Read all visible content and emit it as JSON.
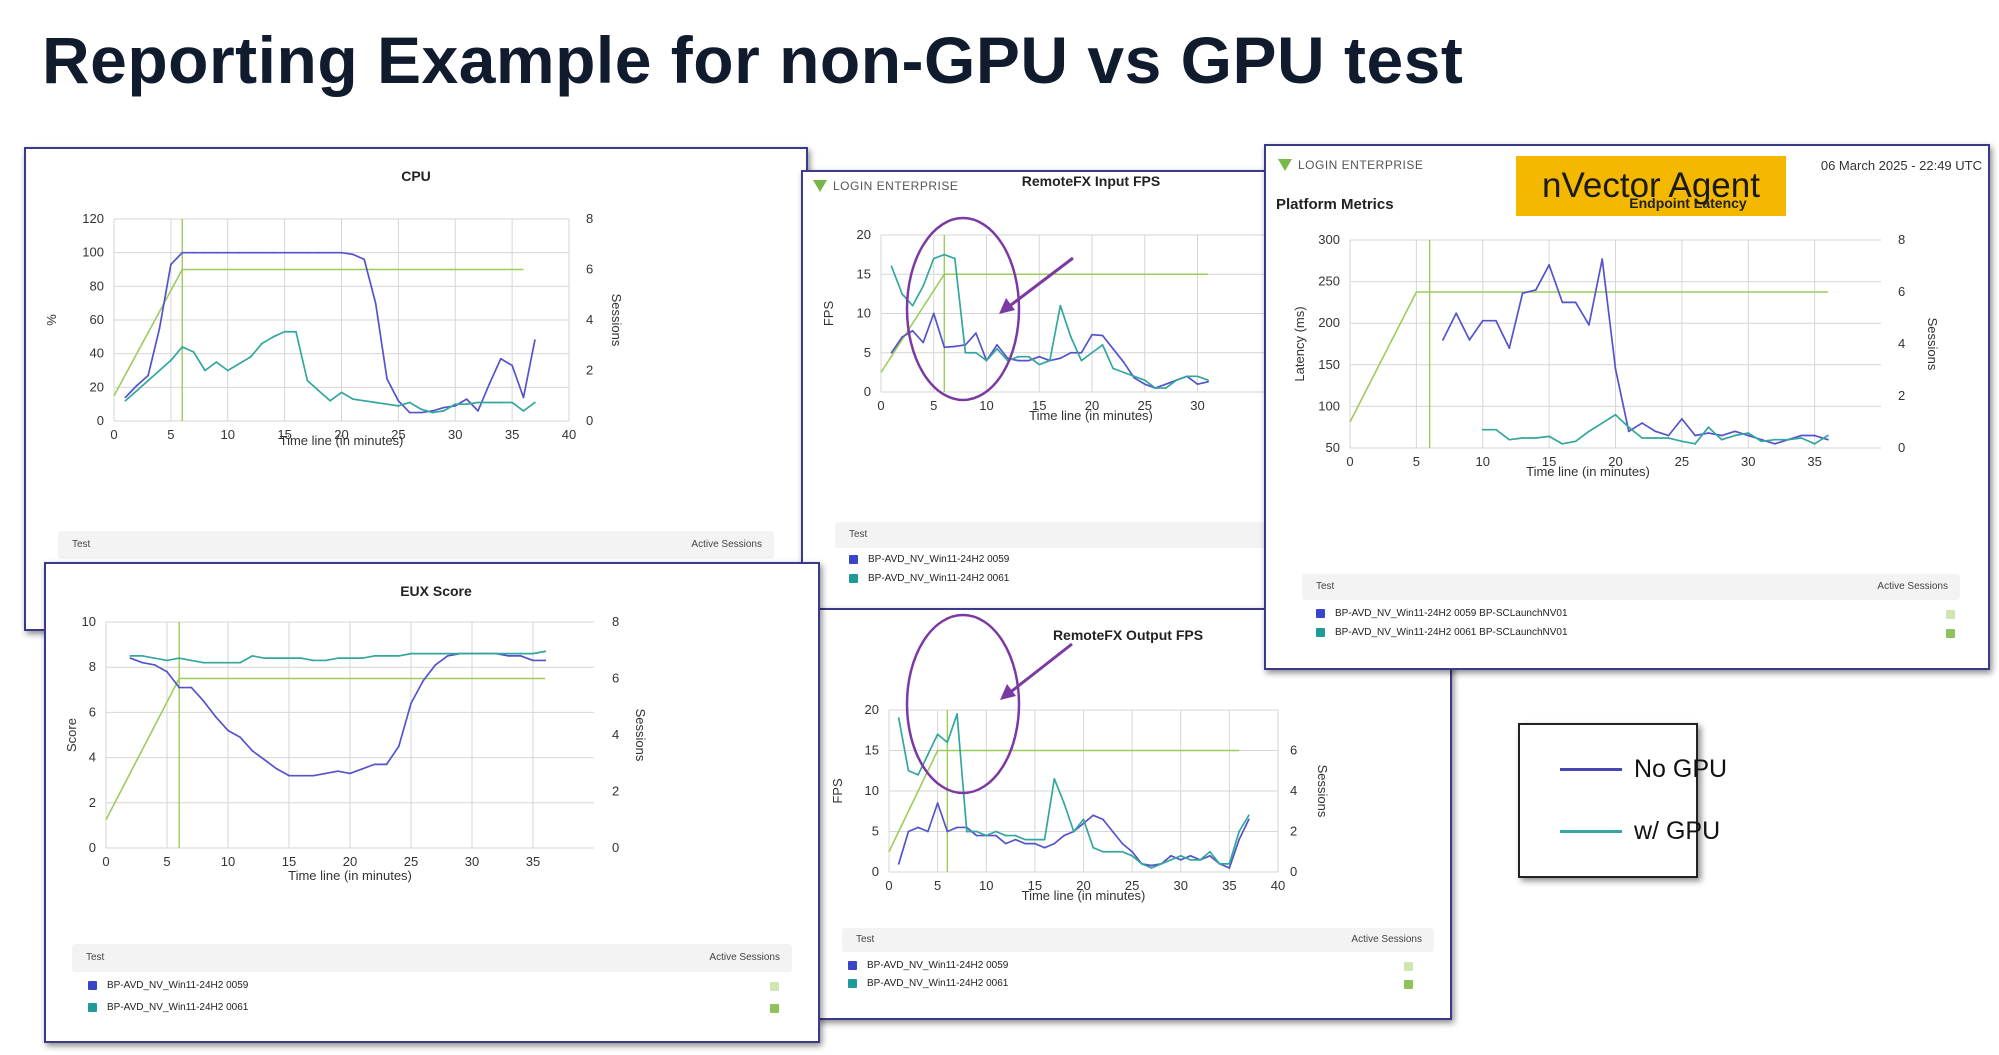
{
  "slide": {
    "title": "Reporting Example for non-GPU vs GPU test"
  },
  "colors": {
    "no_gpu": "#5553cc",
    "w_gpu": "#33a79e",
    "sessions": "#9ccc5b",
    "panel_border": "#3b3a8a",
    "callout": "#7b3aa3",
    "nvector_bg": "#f5b800"
  },
  "key": {
    "no_gpu": "No GPU",
    "w_gpu": "w/ GPU"
  },
  "brand": {
    "logo_text": "LOGIN ENTERPRISE",
    "logo_icon": "login-enterprise-triangle-icon",
    "nvector_label": "nVector Agent",
    "date": "06 March 2025 - 22:49 UTC",
    "section": "Platform Metrics"
  },
  "legend": {
    "test_header": "Test",
    "active_sessions_header": "Active Sessions"
  },
  "chart_data": [
    {
      "id": "cpu",
      "type": "line",
      "title": "CPU",
      "xlabel": "Time line (in minutes)",
      "ylabel": "%",
      "y2label": "Sessions",
      "xlim": [
        0,
        40
      ],
      "xticks": [
        0,
        5,
        10,
        15,
        20,
        25,
        30,
        35,
        40
      ],
      "ylim": [
        0,
        120
      ],
      "yticks": [
        0,
        20,
        40,
        60,
        80,
        100,
        120
      ],
      "y2lim": [
        0,
        8
      ],
      "y2ticks": [
        0,
        2,
        4,
        6,
        8
      ],
      "legend_labels": [
        "Test",
        "Active Sessions"
      ],
      "series": [
        {
          "name": "No GPU",
          "color": "#5553cc",
          "x": [
            1,
            2,
            3,
            4,
            5,
            6,
            7,
            8,
            9,
            10,
            11,
            12,
            13,
            14,
            15,
            16,
            17,
            18,
            19,
            20,
            21,
            22,
            23,
            24,
            25,
            26,
            27,
            28,
            29,
            30,
            31,
            32,
            33,
            34,
            35,
            36,
            37
          ],
          "values": [
            14,
            21,
            27,
            55,
            93,
            100,
            100,
            100,
            100,
            100,
            100,
            100,
            100,
            100,
            100,
            100,
            100,
            100,
            100,
            100,
            99,
            96,
            70,
            25,
            12,
            5,
            5,
            6,
            8,
            9,
            13,
            6,
            22,
            37,
            33,
            14,
            48
          ]
        },
        {
          "name": "w/ GPU",
          "color": "#33a79e",
          "x": [
            1,
            2,
            3,
            4,
            5,
            6,
            7,
            8,
            9,
            10,
            11,
            12,
            13,
            14,
            15,
            16,
            17,
            18,
            19,
            20,
            21,
            22,
            23,
            24,
            25,
            26,
            27,
            28,
            29,
            30,
            31,
            32,
            33,
            34,
            35,
            36,
            37
          ],
          "values": [
            12,
            18,
            24,
            30,
            36,
            44,
            41,
            30,
            35,
            30,
            34,
            38,
            46,
            50,
            53,
            53,
            24,
            18,
            12,
            17,
            13,
            12,
            11,
            10,
            9,
            11,
            7,
            5,
            6,
            10,
            10,
            11,
            11,
            11,
            11,
            6,
            11
          ]
        }
      ],
      "sessions": {
        "color": "#9ccc5b",
        "x": [
          0,
          6,
          6,
          36
        ],
        "values": [
          1,
          6,
          6,
          6
        ],
        "marker_x": 6
      }
    },
    {
      "id": "eux",
      "type": "line",
      "title": "EUX Score",
      "xlabel": "Time line (in minutes)",
      "ylabel": "Score",
      "y2label": "Sessions",
      "xlim": [
        0,
        40
      ],
      "xticks": [
        0,
        5,
        10,
        15,
        20,
        25,
        30,
        35
      ],
      "ylim": [
        0,
        10
      ],
      "yticks": [
        0,
        2,
        4,
        6,
        8,
        10
      ],
      "y2lim": [
        0,
        8
      ],
      "y2ticks": [
        0,
        2,
        4,
        6,
        8
      ],
      "legend_labels": [
        "BP-AVD_NV_Win11-24H2 0059",
        "BP-AVD_NV_Win11-24H2 0061"
      ],
      "series": [
        {
          "name": "BP-AVD_NV_Win11-24H2 0059",
          "color": "#5553cc",
          "x": [
            2,
            3,
            4,
            5,
            6,
            7,
            8,
            9,
            10,
            11,
            12,
            13,
            14,
            15,
            16,
            17,
            18,
            19,
            20,
            21,
            22,
            23,
            24,
            25,
            26,
            27,
            28,
            29,
            30,
            31,
            32,
            33,
            34,
            35,
            36
          ],
          "values": [
            8.4,
            8.2,
            8.1,
            7.8,
            7.1,
            7.1,
            6.5,
            5.8,
            5.2,
            4.9,
            4.3,
            3.9,
            3.5,
            3.2,
            3.2,
            3.2,
            3.3,
            3.4,
            3.3,
            3.5,
            3.7,
            3.7,
            4.5,
            6.4,
            7.4,
            8.1,
            8.5,
            8.6,
            8.6,
            8.6,
            8.6,
            8.5,
            8.5,
            8.3,
            8.3
          ]
        },
        {
          "name": "BP-AVD_NV_Win11-24H2 0061",
          "color": "#33a79e",
          "x": [
            2,
            3,
            4,
            5,
            6,
            7,
            8,
            9,
            10,
            11,
            12,
            13,
            14,
            15,
            16,
            17,
            18,
            19,
            20,
            21,
            22,
            23,
            24,
            25,
            26,
            27,
            28,
            29,
            30,
            31,
            32,
            33,
            34,
            35,
            36
          ],
          "values": [
            8.5,
            8.5,
            8.4,
            8.3,
            8.4,
            8.3,
            8.2,
            8.2,
            8.2,
            8.2,
            8.5,
            8.4,
            8.4,
            8.4,
            8.4,
            8.3,
            8.3,
            8.4,
            8.4,
            8.4,
            8.5,
            8.5,
            8.5,
            8.6,
            8.6,
            8.6,
            8.6,
            8.6,
            8.6,
            8.6,
            8.6,
            8.6,
            8.6,
            8.6,
            8.7
          ]
        }
      ],
      "sessions": {
        "color": "#9ccc5b",
        "x": [
          0,
          6,
          6,
          36
        ],
        "values": [
          1,
          6,
          6,
          6
        ],
        "marker_x": 6
      }
    },
    {
      "id": "input_fps",
      "type": "line",
      "title": "RemoteFX Input FPS",
      "xlabel": "Time line (in minutes)",
      "ylabel": "FPS",
      "xlim": [
        0,
        40
      ],
      "xticks": [
        0,
        5,
        10,
        15,
        20,
        25,
        30
      ],
      "ylim": [
        0,
        20
      ],
      "yticks": [
        0,
        5,
        10,
        15,
        20
      ],
      "y2lim": [
        0,
        8
      ],
      "legend_labels": [
        "BP-AVD_NV_Win11-24H2 0059",
        "BP-AVD_NV_Win11-24H2 0061"
      ],
      "series": [
        {
          "name": "BP-AVD_NV_Win11-24H2 0059",
          "color": "#5553cc",
          "x": [
            1,
            2,
            3,
            4,
            5,
            6,
            7,
            8,
            9,
            10,
            11,
            12,
            13,
            14,
            15,
            16,
            17,
            18,
            19,
            20,
            21,
            22,
            23,
            24,
            25,
            26,
            27,
            28,
            29,
            30,
            31
          ],
          "values": [
            5,
            7,
            7.8,
            6.3,
            10,
            5.7,
            5.8,
            6,
            7.5,
            4,
            6,
            4.3,
            4,
            4,
            4.5,
            4,
            4.3,
            5,
            5,
            7.3,
            7.2,
            5.5,
            3.8,
            1.8,
            1,
            0.5,
            1,
            1.5,
            2,
            1,
            1.3
          ]
        },
        {
          "name": "BP-AVD_NV_Win11-24H2 0061",
          "color": "#33a79e",
          "x": [
            1,
            2,
            3,
            4,
            5,
            6,
            7,
            8,
            9,
            10,
            11,
            12,
            13,
            14,
            15,
            16,
            17,
            18,
            19,
            20,
            21,
            22,
            23,
            24,
            25,
            26,
            27,
            28,
            29,
            30,
            31
          ],
          "values": [
            16,
            12.5,
            11,
            13.5,
            17,
            17.5,
            17,
            5,
            5,
            4,
            5.5,
            4,
            4.5,
            4.5,
            3.5,
            4,
            11,
            7,
            4,
            5,
            6,
            3,
            2.5,
            2,
            1.5,
            0.5,
            0.5,
            1.5,
            2,
            2,
            1.5
          ]
        }
      ],
      "sessions": {
        "color": "#9ccc5b",
        "x": [
          0,
          6,
          6,
          31
        ],
        "values": [
          1,
          6,
          6,
          6
        ],
        "marker_x": 6
      }
    },
    {
      "id": "output_fps",
      "type": "line",
      "title": "RemoteFX Output FPS",
      "xlabel": "Time line (in minutes)",
      "ylabel": "FPS",
      "y2label": "Sessions",
      "xlim": [
        0,
        40
      ],
      "xticks": [
        0,
        5,
        10,
        15,
        20,
        25,
        30,
        35,
        40
      ],
      "ylim": [
        0,
        20
      ],
      "yticks": [
        0,
        5,
        10,
        15,
        20
      ],
      "y2lim": [
        0,
        8
      ],
      "y2ticks": [
        0,
        2,
        4,
        6
      ],
      "legend_labels": [
        "BP-AVD_NV_Win11-24H2 0059",
        "BP-AVD_NV_Win11-24H2 0061"
      ],
      "series": [
        {
          "name": "BP-AVD_NV_Win11-24H2 0059",
          "color": "#5553cc",
          "x": [
            1,
            2,
            3,
            4,
            5,
            6,
            7,
            8,
            9,
            10,
            11,
            12,
            13,
            14,
            15,
            16,
            17,
            18,
            19,
            20,
            21,
            22,
            23,
            24,
            25,
            26,
            27,
            28,
            29,
            30,
            31,
            32,
            33,
            34,
            35,
            36,
            37
          ],
          "values": [
            1,
            5,
            5.5,
            5,
            8.5,
            5,
            5.5,
            5.5,
            4.5,
            4.5,
            4.5,
            3.5,
            4,
            3.5,
            3.5,
            3,
            3.5,
            4.5,
            5,
            6,
            7,
            6.5,
            5,
            3.5,
            2.5,
            1,
            0.8,
            1,
            2,
            1.5,
            2,
            1.5,
            2,
            1,
            0.5,
            4,
            6.5
          ]
        },
        {
          "name": "BP-AVD_NV_Win11-24H2 0061",
          "color": "#33a79e",
          "x": [
            1,
            2,
            3,
            4,
            5,
            6,
            7,
            8,
            9,
            10,
            11,
            12,
            13,
            14,
            15,
            16,
            17,
            18,
            19,
            20,
            21,
            22,
            23,
            24,
            25,
            26,
            27,
            28,
            29,
            30,
            31,
            32,
            33,
            34,
            35,
            36,
            37
          ],
          "values": [
            19,
            12.5,
            12,
            14.5,
            17,
            16,
            19.5,
            5,
            5,
            4.5,
            5,
            4.5,
            4.5,
            4,
            4,
            4,
            11.5,
            8.5,
            5,
            6.5,
            3,
            2.5,
            2.5,
            2.5,
            2,
            1,
            0.5,
            1,
            1.5,
            2,
            1.5,
            1.5,
            2.5,
            1,
            1,
            5,
            7
          ]
        }
      ],
      "sessions": {
        "color": "#9ccc5b",
        "x": [
          0,
          5,
          5,
          36
        ],
        "values": [
          1,
          6,
          6,
          6
        ],
        "marker_x": 6
      }
    },
    {
      "id": "latency",
      "type": "line",
      "title": "Endpoint Latency",
      "xlabel": "Time line (in minutes)",
      "ylabel": "Latency (ms)",
      "y2label": "Sessions",
      "xlim": [
        0,
        40
      ],
      "xticks": [
        0,
        5,
        10,
        15,
        20,
        25,
        30,
        35
      ],
      "ylim": [
        50,
        300
      ],
      "yticks": [
        50,
        100,
        150,
        200,
        250,
        300
      ],
      "y2lim": [
        0,
        8
      ],
      "y2ticks": [
        0,
        2,
        4,
        6,
        8
      ],
      "legend_labels": [
        "BP-AVD_NV_Win11-24H2 0059 BP-SCLaunchNV01",
        "BP-AVD_NV_Win11-24H2 0061 BP-SCLaunchNV01"
      ],
      "series": [
        {
          "name": "BP-AVD_NV_Win11-24H2 0059 BP-SCLaunchNV01",
          "color": "#5553cc",
          "x": [
            7,
            8,
            9,
            10,
            11,
            12,
            13,
            14,
            15,
            16,
            17,
            18,
            19,
            20,
            21,
            22,
            23,
            24,
            25,
            26,
            27,
            28,
            29,
            30,
            31,
            32,
            33,
            34,
            35,
            36
          ],
          "values": [
            180,
            212,
            180,
            203,
            203,
            170,
            236,
            240,
            270,
            225,
            225,
            198,
            277,
            145,
            70,
            80,
            70,
            65,
            85,
            65,
            68,
            65,
            70,
            65,
            60,
            55,
            60,
            65,
            65,
            60
          ]
        },
        {
          "name": "BP-AVD_NV_Win11-24H2 0061 BP-SCLaunchNV01",
          "color": "#33a79e",
          "x": [
            10,
            11,
            12,
            13,
            14,
            15,
            16,
            17,
            18,
            19,
            20,
            21,
            22,
            23,
            24,
            25,
            26,
            27,
            28,
            29,
            30,
            31,
            32,
            33,
            34,
            35,
            36
          ],
          "values": [
            72,
            72,
            60,
            62,
            62,
            64,
            55,
            58,
            70,
            80,
            90,
            75,
            62,
            62,
            62,
            58,
            55,
            75,
            60,
            65,
            68,
            58,
            60,
            60,
            62,
            55,
            65
          ]
        }
      ],
      "sessions": {
        "color": "#9ccc5b",
        "x": [
          0,
          5,
          5,
          36
        ],
        "values": [
          1,
          6,
          6,
          6
        ],
        "marker_x": 6
      }
    }
  ]
}
